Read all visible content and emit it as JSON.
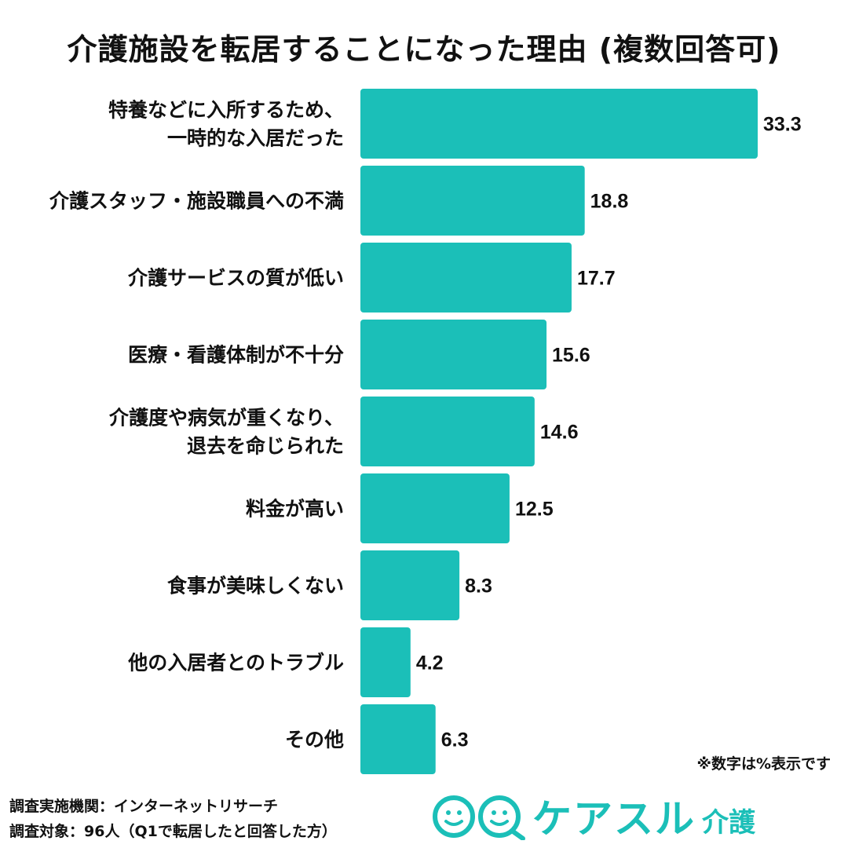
{
  "title": "介護施設を転居することになった理由 (複数回答可)",
  "note": "※数字は%表示です",
  "footer": {
    "line1": "調査実施機関：インターネットリサーチ",
    "line2": "調査対象：96人（Q1で転居したと回答した方）"
  },
  "logo": {
    "text": "ケアスル",
    "sub": "介護",
    "color": "#1bbfb8"
  },
  "chart_data": {
    "type": "bar",
    "orientation": "horizontal",
    "bar_color": "#1bbfb8",
    "categories": [
      [
        "特養などに入所するため、",
        "一時的な入居だった"
      ],
      [
        "介護スタッフ・施設職員への不満"
      ],
      [
        "介護サービスの質が低い"
      ],
      [
        "医療・看護体制が不十分"
      ],
      [
        "介護度や病気が重くなり、",
        "退去を命じられた"
      ],
      [
        "料金が高い"
      ],
      [
        "食事が美味しくない"
      ],
      [
        "他の入居者とのトラブル"
      ],
      [
        "その他"
      ]
    ],
    "values": [
      33.3,
      18.8,
      17.7,
      15.6,
      14.6,
      12.5,
      8.3,
      4.2,
      6.3
    ],
    "value_labels": [
      "33.3",
      "18.8",
      "17.7",
      "15.6",
      "14.6",
      "12.5",
      "8.3",
      "4.2",
      "6.3"
    ]
  }
}
